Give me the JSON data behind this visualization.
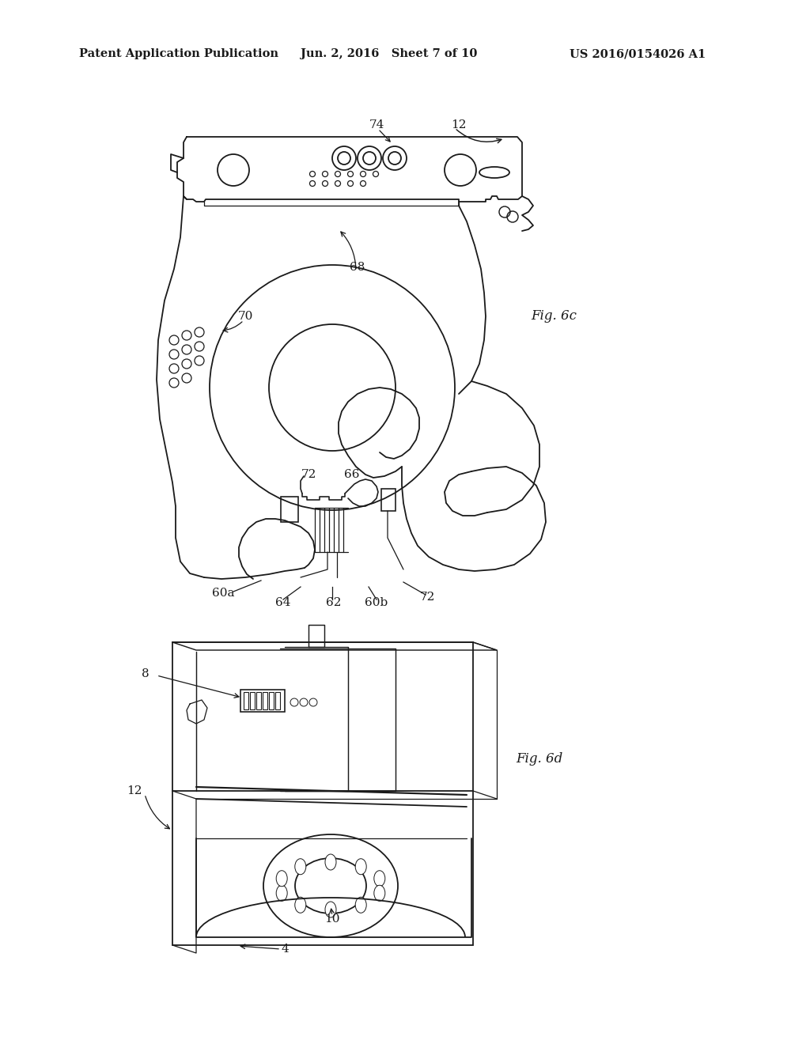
{
  "bg_color": "#ffffff",
  "line_color": "#1a1a1a",
  "lw": 1.3,
  "header_text": "Patent Application Publication",
  "header_date": "Jun. 2, 2016   Sheet 7 of 10",
  "header_patent": "US 2016/0154026 A1",
  "fig6c_label": "Fig. 6c",
  "fig6d_label": "Fig. 6d"
}
